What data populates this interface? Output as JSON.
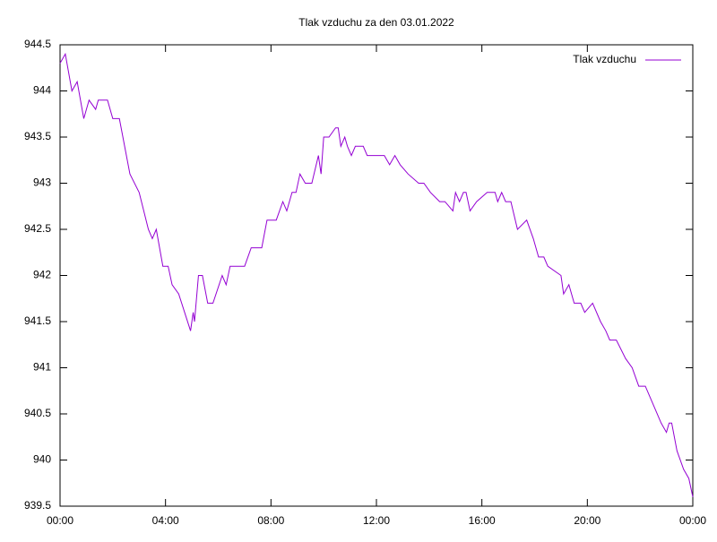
{
  "chart_data": {
    "type": "line",
    "title": "Tlak vzduchu za den 03.01.2022",
    "x": [
      0,
      0.2,
      0.45,
      0.65,
      0.9,
      1.1,
      1.35,
      1.45,
      1.8,
      2.0,
      2.25,
      2.65,
      3.0,
      3.35,
      3.5,
      3.65,
      3.9,
      4.1,
      4.25,
      4.5,
      4.95,
      5.05,
      5.1,
      5.25,
      5.4,
      5.6,
      5.8,
      6.15,
      6.3,
      6.45,
      7.0,
      7.25,
      7.65,
      7.85,
      8.2,
      8.45,
      8.6,
      8.8,
      8.95,
      9.1,
      9.3,
      9.55,
      9.8,
      9.9,
      10.0,
      10.2,
      10.45,
      10.55,
      10.65,
      10.8,
      10.9,
      11.05,
      11.2,
      11.5,
      11.65,
      12.3,
      12.5,
      12.7,
      12.9,
      13.2,
      13.6,
      13.8,
      14.05,
      14.4,
      14.6,
      14.9,
      15.0,
      15.15,
      15.3,
      15.4,
      15.55,
      15.8,
      16.2,
      16.5,
      16.6,
      16.75,
      16.9,
      17.1,
      17.35,
      17.7,
      17.95,
      18.15,
      18.35,
      18.5,
      19.0,
      19.1,
      19.3,
      19.5,
      19.75,
      19.9,
      20.2,
      20.5,
      20.7,
      20.85,
      21.1,
      21.45,
      21.7,
      21.95,
      22.2,
      22.5,
      22.8,
      23.0,
      23.1,
      23.2,
      23.4,
      23.65,
      23.85,
      24.0
    ],
    "series": [
      {
        "name": "Tlak vzduchu",
        "color": "#9400d3",
        "values": [
          944.3,
          944.4,
          944.0,
          944.1,
          943.7,
          943.9,
          943.8,
          943.9,
          943.9,
          943.7,
          943.7,
          943.1,
          942.9,
          942.5,
          942.4,
          942.5,
          942.1,
          942.1,
          941.9,
          941.8,
          941.4,
          941.6,
          941.5,
          942.0,
          942.0,
          941.7,
          941.7,
          942.0,
          941.9,
          942.1,
          942.1,
          942.3,
          942.3,
          942.6,
          942.6,
          942.8,
          942.7,
          942.9,
          942.9,
          943.1,
          943.0,
          943.0,
          943.3,
          943.1,
          943.5,
          943.5,
          943.6,
          943.6,
          943.4,
          943.5,
          943.4,
          943.3,
          943.4,
          943.4,
          943.3,
          943.3,
          943.2,
          943.3,
          943.2,
          943.1,
          943.0,
          943.0,
          942.9,
          942.8,
          942.8,
          942.7,
          942.9,
          942.8,
          942.9,
          942.9,
          942.7,
          942.8,
          942.9,
          942.9,
          942.8,
          942.9,
          942.8,
          942.8,
          942.5,
          942.6,
          942.4,
          942.2,
          942.2,
          942.1,
          942.0,
          941.8,
          941.9,
          941.7,
          941.7,
          941.6,
          941.7,
          941.5,
          941.4,
          941.3,
          941.3,
          941.1,
          941.0,
          940.8,
          940.8,
          940.6,
          940.4,
          940.3,
          940.4,
          940.4,
          940.1,
          939.9,
          939.8,
          939.6
        ]
      }
    ],
    "xlim": [
      0,
      24
    ],
    "xticks": [
      {
        "value": 0,
        "label": "00:00"
      },
      {
        "value": 4,
        "label": "04:00"
      },
      {
        "value": 8,
        "label": "08:00"
      },
      {
        "value": 12,
        "label": "12:00"
      },
      {
        "value": 16,
        "label": "16:00"
      },
      {
        "value": 20,
        "label": "20:00"
      },
      {
        "value": 24,
        "label": "00:00"
      }
    ],
    "ylim": [
      939.5,
      944.5
    ],
    "yticks": [
      939.5,
      940,
      940.5,
      941,
      941.5,
      942,
      942.5,
      943,
      943.5,
      944,
      944.5
    ],
    "legend": "top-right"
  }
}
